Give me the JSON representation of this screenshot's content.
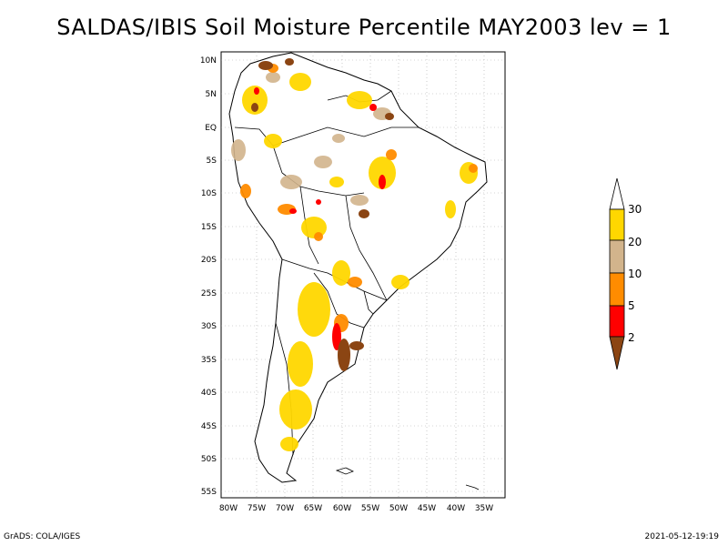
{
  "title": "SALDAS/IBIS Soil Moisture Percentile MAY2003 lev = 1",
  "footer_left": "GrADS: COLA/IGES",
  "footer_right": "2021-05-12-19:19",
  "lat_labels": [
    "10N",
    "5N",
    "EQ",
    "5S",
    "10S",
    "15S",
    "20S",
    "25S",
    "30S",
    "35S",
    "40S",
    "45S",
    "50S",
    "55S"
  ],
  "lon_labels": [
    "80W",
    "75W",
    "70W",
    "65W",
    "60W",
    "55W",
    "50W",
    "45W",
    "40W",
    "35W"
  ],
  "colorbar": {
    "bins": [
      {
        "label": "2",
        "color": "#8b4513"
      },
      {
        "label": "5",
        "color": "#ff0000"
      },
      {
        "label": "10",
        "color": "#ff8c00"
      },
      {
        "label": "20",
        "color": "#d2b48c"
      },
      {
        "label": "30",
        "color": "#ffd700"
      }
    ],
    "top_color": "#ffffff"
  }
}
